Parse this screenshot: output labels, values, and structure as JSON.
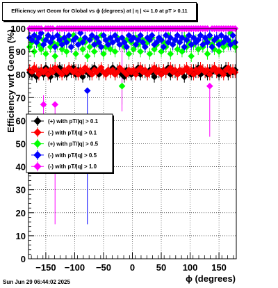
{
  "chart_data": {
    "type": "scatter",
    "title": "Efficiency wrt Geom for Global vs ϕ (degrees) at |  η  | <= 1.0 at pT > 0.11",
    "xlabel": "ϕ (degrees)",
    "ylabel": "Efficiency wrt Geom (%)",
    "xlim": [
      -180,
      180
    ],
    "ylim": [
      0,
      100
    ],
    "x_ticks": [
      -150,
      -100,
      -50,
      0,
      50,
      100,
      150
    ],
    "y_ticks": [
      0,
      10,
      20,
      30,
      40,
      50,
      60,
      70,
      80,
      90,
      100
    ],
    "grid": true,
    "legend_position": "left-middle",
    "x": [
      -178,
      -174,
      -170,
      -166,
      -162,
      -158,
      -154,
      -150,
      -146,
      -142,
      -138,
      -134,
      -130,
      -126,
      -122,
      -118,
      -114,
      -110,
      -106,
      -102,
      -98,
      -94,
      -90,
      -86,
      -82,
      -78,
      -74,
      -70,
      -66,
      -62,
      -58,
      -54,
      -50,
      -46,
      -42,
      -38,
      -34,
      -30,
      -26,
      -22,
      -18,
      -14,
      -10,
      -6,
      -2,
      2,
      6,
      10,
      14,
      18,
      22,
      26,
      30,
      34,
      38,
      42,
      46,
      50,
      54,
      58,
      62,
      66,
      70,
      74,
      78,
      82,
      86,
      90,
      94,
      98,
      102,
      106,
      110,
      114,
      118,
      122,
      126,
      130,
      134,
      138,
      142,
      146,
      150,
      154,
      158,
      162,
      166,
      170,
      174,
      178
    ],
    "series": [
      {
        "name": "(+) with pT/|q| > 0.1",
        "color": "#000000",
        "values": [
          81,
          80,
          82,
          79,
          81,
          82,
          80,
          83,
          81,
          79,
          82,
          81,
          80,
          83,
          82,
          81,
          80,
          82,
          81,
          83,
          80,
          82,
          81,
          79,
          82,
          81,
          80,
          82,
          83,
          81,
          80,
          82,
          81,
          80,
          82,
          81,
          83,
          80,
          82,
          81,
          80,
          79,
          82,
          81,
          80,
          82,
          81,
          83,
          80,
          82,
          81,
          80,
          82,
          81,
          79,
          82,
          81,
          80,
          82,
          81,
          83,
          80,
          82,
          81,
          80,
          82,
          81,
          79,
          82,
          81,
          80,
          82,
          81,
          83,
          80,
          82,
          81,
          80,
          82,
          81,
          83,
          81,
          80,
          82,
          81,
          83,
          80,
          82,
          81,
          82
        ]
      },
      {
        "name": "(-) with pT/|q| > 0.1",
        "color": "#ff0000",
        "values": [
          82,
          81,
          83,
          82,
          80,
          82,
          81,
          82,
          80,
          82,
          81,
          83,
          82,
          81,
          80,
          82,
          81,
          83,
          82,
          81,
          82,
          80,
          82,
          81,
          83,
          82,
          81,
          80,
          82,
          81,
          82,
          83,
          81,
          80,
          82,
          81,
          82,
          80,
          81,
          83,
          82,
          81,
          80,
          82,
          81,
          82,
          80,
          82,
          83,
          81,
          82,
          80,
          81,
          82,
          83,
          81,
          82,
          80,
          82,
          81,
          82,
          83,
          81,
          82,
          80,
          82,
          81,
          82,
          83,
          81,
          82,
          80,
          82,
          81,
          83,
          82,
          81,
          82,
          80,
          82,
          83,
          81,
          82,
          81,
          80,
          82,
          83,
          81,
          82,
          81
        ]
      },
      {
        "name": "(+) with pT/|q| > 0.5",
        "color": "#00ff00",
        "values": [
          92,
          94,
          90,
          96,
          93,
          91,
          95,
          89,
          97,
          92,
          94,
          88,
          93,
          96,
          91,
          94,
          90,
          95,
          92,
          97,
          89,
          93,
          95,
          91,
          94,
          88,
          92,
          96,
          90,
          94,
          93,
          97,
          89,
          92,
          95,
          91,
          94,
          90,
          96,
          93,
          75,
          92,
          95,
          89,
          94,
          91,
          96,
          93,
          90,
          95,
          92,
          94,
          89,
          96,
          91,
          93,
          95,
          90,
          94,
          92,
          97,
          89,
          93,
          95,
          91,
          94,
          90,
          96,
          92,
          94,
          88,
          93,
          95,
          91,
          97,
          92,
          94,
          89,
          96,
          93,
          91,
          95,
          90,
          94,
          92,
          96,
          93,
          98,
          94,
          92
        ]
      },
      {
        "name": "(-) with pT/|q| > 0.5",
        "color": "#0000ff",
        "values": [
          96,
          95,
          97,
          94,
          96,
          98,
          93,
          95,
          97,
          94,
          96,
          92,
          97,
          95,
          93,
          96,
          94,
          97,
          92,
          95,
          96,
          93,
          98,
          94,
          96,
          73,
          95,
          97,
          93,
          96,
          94,
          92,
          97,
          95,
          93,
          96,
          94,
          97,
          95,
          93,
          96,
          94,
          92,
          97,
          95,
          96,
          93,
          95,
          97,
          94,
          92,
          96,
          95,
          97,
          93,
          94,
          96,
          95,
          92,
          97,
          94,
          96,
          93,
          95,
          97,
          94,
          96,
          92,
          95,
          97,
          93,
          96,
          94,
          95,
          97,
          93,
          96,
          94,
          97,
          92,
          95,
          96,
          93,
          97,
          94,
          96,
          95,
          93,
          97,
          94
        ]
      },
      {
        "name": "(-) with pT/|q| > 1.0",
        "color": "#ff00ff",
        "values": [
          100,
          100,
          100,
          100,
          100,
          100,
          67,
          100,
          100,
          100,
          100,
          67,
          100,
          100,
          100,
          100,
          100,
          100,
          100,
          100,
          100,
          100,
          100,
          100,
          100,
          100,
          100,
          100,
          100,
          100,
          100,
          100,
          100,
          100,
          100,
          100,
          100,
          100,
          100,
          100,
          100,
          100,
          100,
          100,
          100,
          100,
          100,
          100,
          100,
          100,
          100,
          100,
          100,
          100,
          100,
          100,
          100,
          100,
          100,
          100,
          100,
          100,
          100,
          100,
          100,
          100,
          100,
          100,
          100,
          100,
          100,
          100,
          100,
          100,
          100,
          100,
          100,
          100,
          75,
          100,
          100,
          100,
          100,
          100,
          100,
          100,
          100,
          100,
          100,
          100
        ]
      }
    ]
  },
  "stamp": "Sun Jun 29 06:44:02 2025"
}
